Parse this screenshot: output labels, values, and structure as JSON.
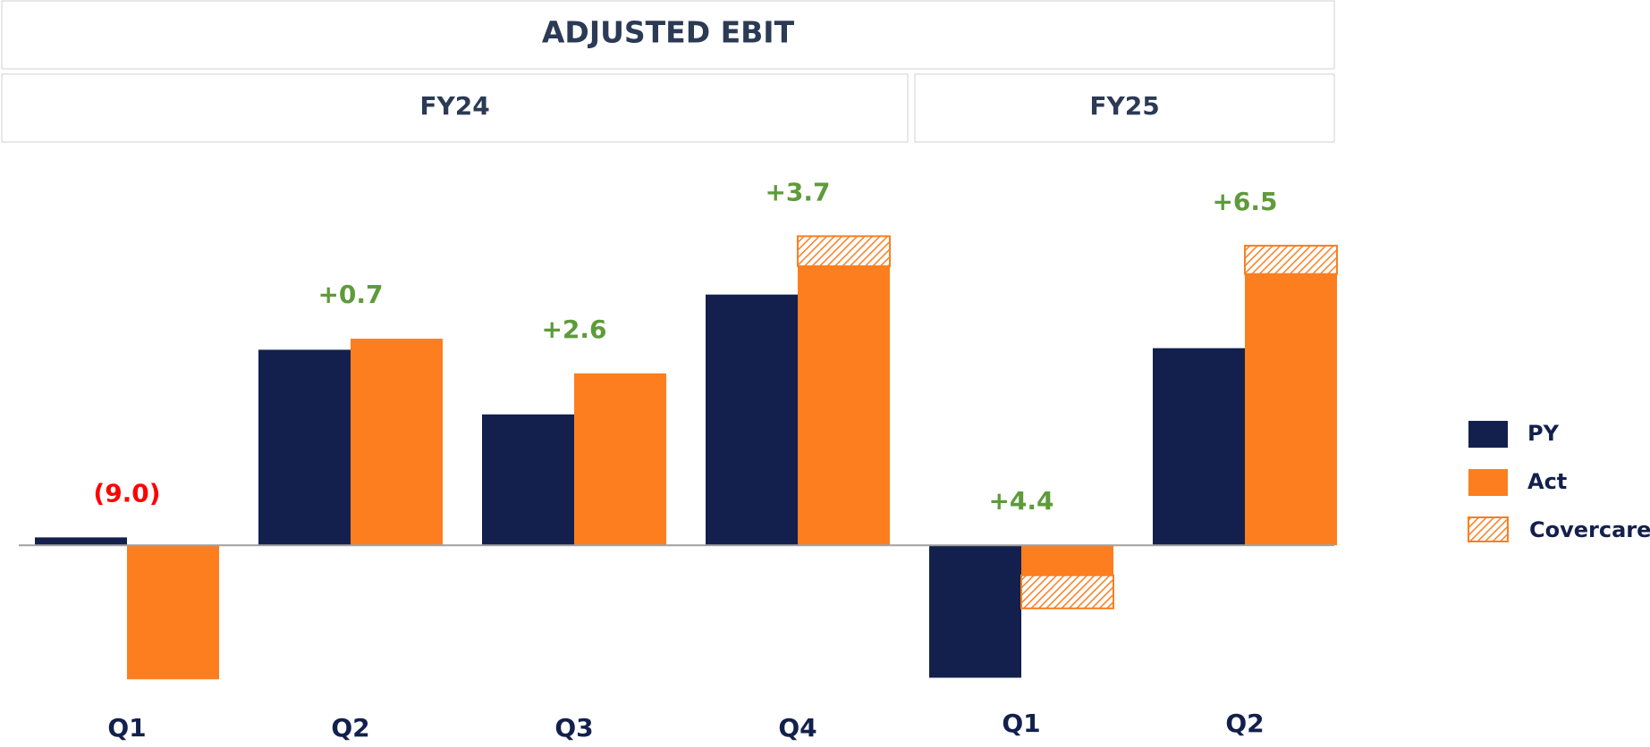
{
  "chart_data": {
    "type": "bar",
    "title": "ADJUSTED EBIT",
    "groups": [
      {
        "name": "FY24",
        "size": 4
      },
      {
        "name": "FY25",
        "size": 2
      }
    ],
    "categories": [
      "Q1",
      "Q2",
      "Q3",
      "Q4",
      "Q1",
      "Q2"
    ],
    "series": [
      {
        "name": "PY",
        "color": "#13204d",
        "values": [
          0.5,
          12.4,
          8.3,
          15.9,
          -8.4,
          12.5
        ]
      },
      {
        "name": "Act",
        "color": "#fd7e1f",
        "values": [
          -8.5,
          13.1,
          10.9,
          17.7,
          -1.9,
          17.2
        ]
      },
      {
        "name": "Covercare",
        "color": "#fd7e1f",
        "hatched": true,
        "stacked_on": "Act",
        "values": [
          null,
          null,
          null,
          1.9,
          -2.1,
          1.8
        ]
      }
    ],
    "variance": {
      "values": [
        -9.0,
        0.7,
        2.6,
        3.7,
        4.4,
        6.5
      ],
      "value_labels": [
        "(9.0)",
        "+0.7",
        "+2.6",
        "+3.7",
        "+4.4",
        "+6.5"
      ],
      "colors": [
        "#ff0000",
        "#5e9b3b",
        "#5e9b3b",
        "#5e9b3b",
        "#5e9b3b",
        "#5e9b3b"
      ]
    },
    "ylim": [
      -12,
      22
    ],
    "legend": "right"
  }
}
